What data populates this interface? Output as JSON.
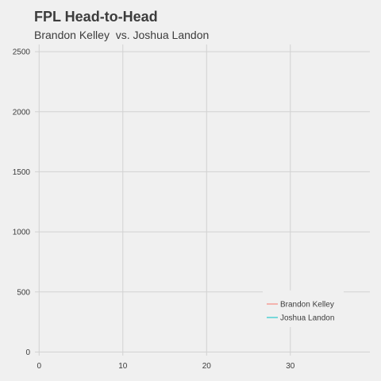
{
  "chart_data": {
    "type": "line",
    "title": "FPL Head-to-Head",
    "subtitle": "Brandon Kelley  vs. Joshua Landon",
    "xlabel": "",
    "ylabel": "",
    "xlim": [
      -0.5,
      39.5
    ],
    "ylim": [
      -30,
      2560
    ],
    "x_ticks": [
      0,
      10,
      20,
      30
    ],
    "y_ticks": [
      0,
      500,
      1000,
      1500,
      2000,
      2500
    ],
    "grid": true,
    "legend_position": "bottom-right",
    "series": [
      {
        "name": "Brandon Kelley",
        "color": "#f8766d",
        "x": [],
        "y": []
      },
      {
        "name": "Joshua Landon",
        "color": "#00bfc4",
        "x": [],
        "y": []
      }
    ]
  }
}
